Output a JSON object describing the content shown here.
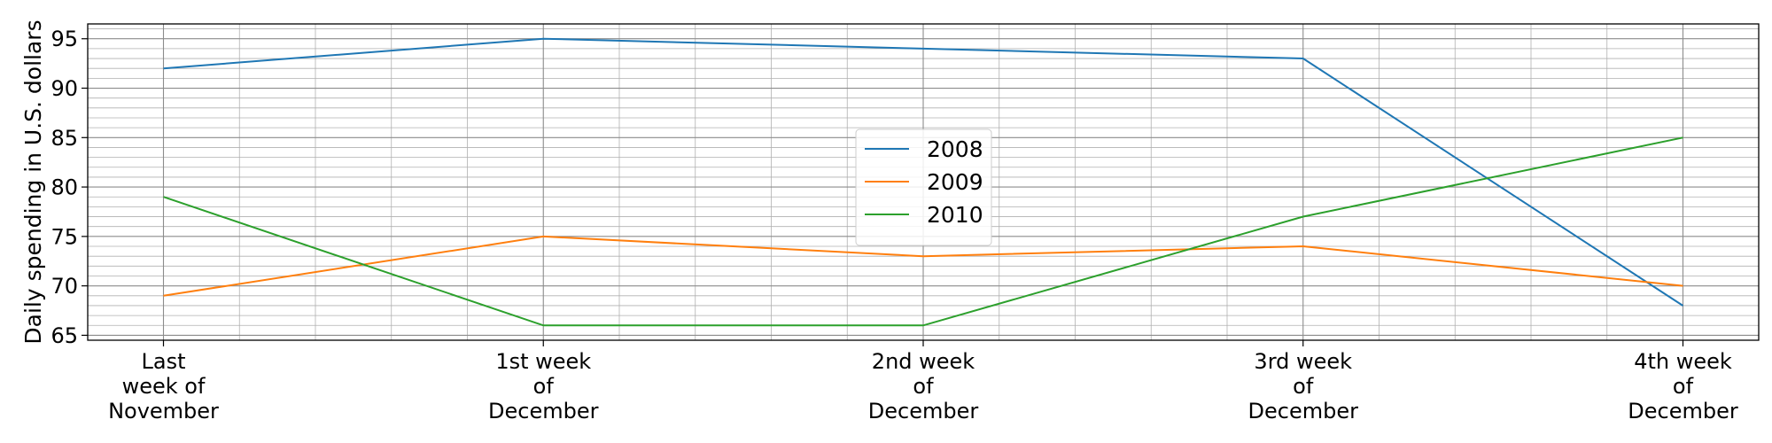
{
  "chart_data": {
    "type": "line",
    "title": "",
    "xlabel": "",
    "ylabel": "Daily spending in U.S. dollars",
    "categories": [
      [
        "Last",
        "week of",
        "November"
      ],
      [
        "1st week",
        "of",
        "December"
      ],
      [
        "2nd week",
        "of",
        "December"
      ],
      [
        "3rd week",
        "of",
        "December"
      ],
      [
        "4th week",
        "of",
        "December"
      ]
    ],
    "series": [
      {
        "name": "2008",
        "color": "#1f77b4",
        "values": [
          92,
          95,
          94,
          93,
          68
        ]
      },
      {
        "name": "2009",
        "color": "#ff7f0e",
        "values": [
          69,
          75,
          73,
          74,
          70
        ]
      },
      {
        "name": "2010",
        "color": "#2ca02c",
        "values": [
          79,
          66,
          66,
          77,
          85
        ]
      }
    ],
    "ylim": [
      64.5,
      96.5
    ],
    "yticks": [
      65,
      70,
      75,
      80,
      85,
      90,
      95
    ],
    "grid": true,
    "minor_grid": true,
    "legend_position": "center"
  }
}
